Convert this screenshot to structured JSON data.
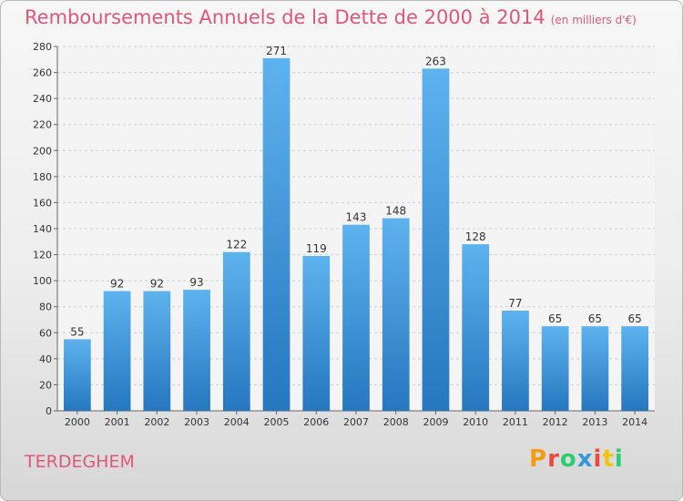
{
  "page": {
    "title": "Remboursements Annuels de la Dette de 2000 à 2014",
    "subtitle": "(en milliers d'€)",
    "commune": "TERDEGHEM",
    "logo_text": "Proxiti",
    "logo_colors": [
      "#f39c12",
      "#e74c3c",
      "#2ecc71",
      "#3498db",
      "#e74c3c",
      "#f1c40f",
      "#2ecc71"
    ]
  },
  "chart_data": {
    "type": "bar",
    "title": "Remboursements Annuels de la Dette de 2000 à 2014",
    "subtitle": "(en milliers d'€)",
    "xlabel": "",
    "ylabel": "",
    "categories": [
      "2000",
      "2001",
      "2002",
      "2003",
      "2004",
      "2005",
      "2006",
      "2007",
      "2008",
      "2009",
      "2010",
      "2011",
      "2012",
      "2013",
      "2014"
    ],
    "values": [
      55,
      92,
      92,
      93,
      122,
      271,
      119,
      143,
      148,
      263,
      128,
      77,
      65,
      65,
      65
    ],
    "ylim": [
      0,
      280
    ],
    "yticks": [
      0,
      20,
      40,
      60,
      80,
      100,
      120,
      140,
      160,
      180,
      200,
      220,
      240,
      260,
      280
    ],
    "grid": true,
    "bar_color": "#3a8fd6",
    "text_color": "#e0577a"
  }
}
